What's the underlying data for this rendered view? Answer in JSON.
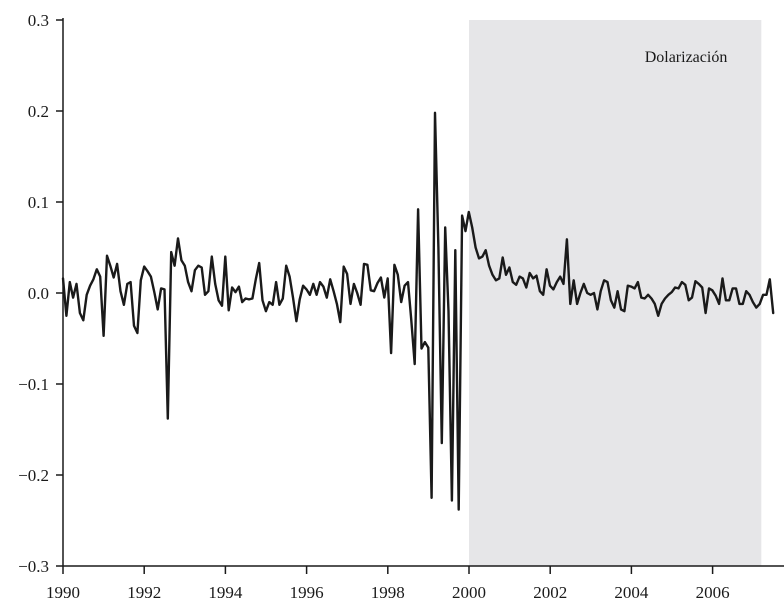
{
  "chart_data": {
    "type": "line",
    "title": "",
    "xlabel": "",
    "ylabel": "",
    "xlim": [
      1990,
      2007.2
    ],
    "ylim": [
      -0.3,
      0.3
    ],
    "x_ticks": [
      1990,
      1992,
      1994,
      1996,
      1998,
      2000,
      2002,
      2004,
      2006
    ],
    "y_ticks": [
      {
        "value": -0.3,
        "label": "−0.3"
      },
      {
        "value": -0.2,
        "label": "−0.2"
      },
      {
        "value": -0.1,
        "label": "−0.1"
      },
      {
        "value": 0.0,
        "label": "0.0"
      },
      {
        "value": 0.1,
        "label": "0.1"
      },
      {
        "value": 0.2,
        "label": "0.2"
      },
      {
        "value": 0.3,
        "label": "0.3"
      }
    ],
    "grid": false,
    "shaded_region": {
      "x_start": 2000.0,
      "x_end": 2007.2,
      "color": "#e6e6e8",
      "label": "Dolarización"
    },
    "series": [
      {
        "color": "#1a1a1a",
        "x_start": 1990.0,
        "x_step": 0.0833,
        "values": [
          0.016,
          -0.025,
          0.012,
          -0.005,
          0.01,
          -0.022,
          -0.03,
          -0.002,
          0.008,
          0.015,
          0.026,
          0.018,
          -0.047,
          0.041,
          0.03,
          0.017,
          0.032,
          0.002,
          -0.013,
          0.01,
          0.012,
          -0.036,
          -0.044,
          0.014,
          0.029,
          0.024,
          0.018,
          0.001,
          -0.018,
          0.005,
          0.004,
          -0.138,
          0.045,
          0.03,
          0.06,
          0.036,
          0.03,
          0.012,
          0.002,
          0.025,
          0.03,
          0.028,
          -0.002,
          0.002,
          0.04,
          0.01,
          -0.008,
          -0.014,
          0.04,
          -0.019,
          0.006,
          0.001,
          0.007,
          -0.01,
          -0.006,
          -0.007,
          -0.006,
          0.015,
          0.033,
          -0.008,
          -0.02,
          -0.01,
          -0.013,
          0.012,
          -0.013,
          -0.006,
          0.03,
          0.018,
          -0.005,
          -0.031,
          -0.007,
          0.008,
          0.004,
          -0.002,
          0.01,
          -0.002,
          0.012,
          0.007,
          -0.005,
          0.015,
          0.002,
          -0.012,
          -0.032,
          0.029,
          0.021,
          -0.012,
          0.01,
          0.0,
          -0.013,
          0.032,
          0.031,
          0.003,
          0.002,
          0.011,
          0.017,
          -0.005,
          0.016,
          -0.066,
          0.031,
          0.02,
          -0.01,
          0.008,
          0.012,
          -0.03,
          -0.078,
          0.092,
          -0.061,
          -0.054,
          -0.06,
          -0.225,
          0.198,
          0.05,
          -0.165,
          0.072,
          -0.02,
          -0.228,
          0.047,
          -0.238,
          0.085,
          0.068,
          0.089,
          0.072,
          0.05,
          0.038,
          0.04,
          0.047,
          0.03,
          0.02,
          0.014,
          0.016,
          0.039,
          0.02,
          0.028,
          0.012,
          0.009,
          0.018,
          0.016,
          0.006,
          0.022,
          0.016,
          0.019,
          0.002,
          -0.002,
          0.026,
          0.008,
          0.004,
          0.012,
          0.018,
          0.01,
          0.059,
          -0.012,
          0.014,
          -0.012,
          0.0,
          0.01,
          0.0,
          -0.002,
          0.0,
          -0.018,
          0.002,
          0.014,
          0.012,
          -0.008,
          -0.016,
          0.002,
          -0.018,
          -0.02,
          0.008,
          0.007,
          0.005,
          0.012,
          -0.005,
          -0.006,
          -0.002,
          -0.006,
          -0.012,
          -0.025,
          -0.012,
          -0.006,
          -0.002,
          0.001,
          0.006,
          0.005,
          0.012,
          0.009,
          -0.008,
          -0.005,
          0.013,
          0.01,
          0.006,
          -0.022,
          0.005,
          0.003,
          -0.003,
          -0.012,
          0.016,
          -0.008,
          -0.008,
          0.005,
          0.005,
          -0.012,
          -0.012,
          0.002,
          -0.002,
          -0.01,
          -0.016,
          -0.012,
          -0.002,
          -0.002,
          0.015,
          -0.022
        ]
      }
    ]
  }
}
